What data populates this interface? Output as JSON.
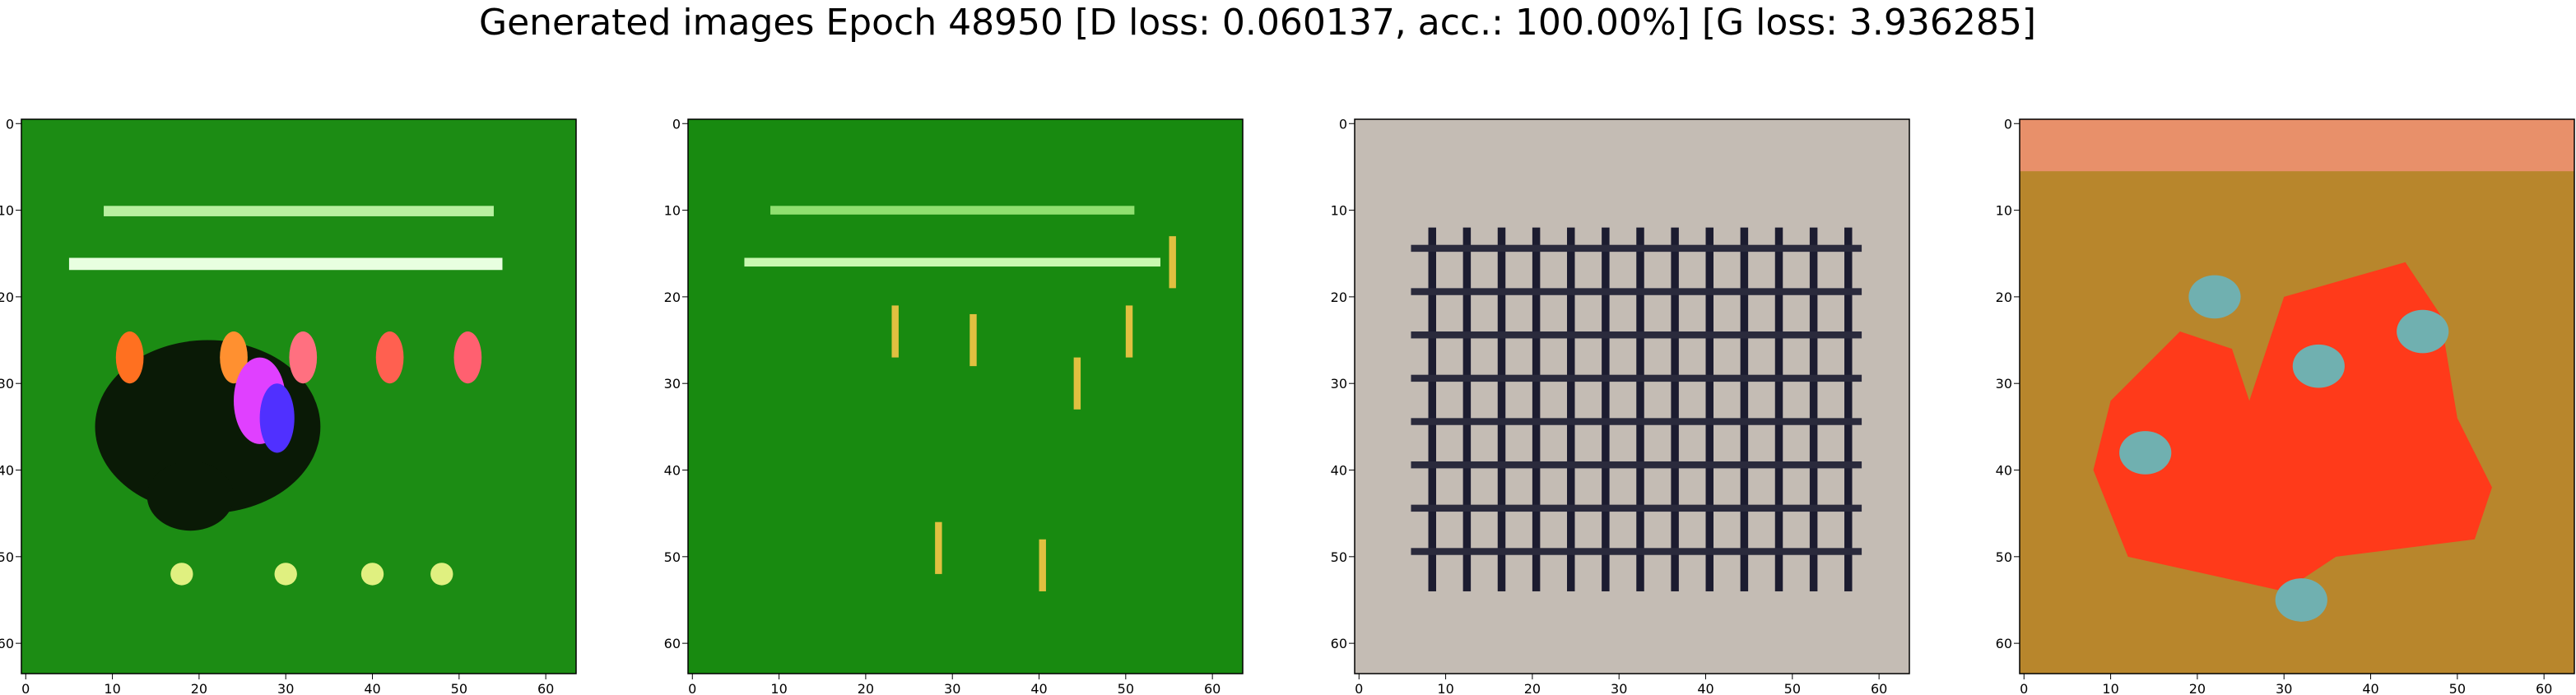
{
  "figure": {
    "title": "Generated images Epoch 48950 [D loss: 0.060137, acc.: 100.00%] [G loss: 3.936285]",
    "panels": [
      {
        "xlim": [
          -0.5,
          63.5
        ],
        "ylim": [
          63.5,
          -0.5
        ],
        "xticks": [
          0,
          10,
          20,
          30,
          40,
          50,
          60
        ],
        "yticks": [
          0,
          10,
          20,
          30,
          40,
          50,
          60
        ]
      },
      {
        "xlim": [
          -0.5,
          63.5
        ],
        "ylim": [
          63.5,
          -0.5
        ],
        "xticks": [
          0,
          10,
          20,
          30,
          40,
          50,
          60
        ],
        "yticks": [
          0,
          10,
          20,
          30,
          40,
          50,
          60
        ]
      },
      {
        "xlim": [
          -0.5,
          63.5
        ],
        "ylim": [
          63.5,
          -0.5
        ],
        "xticks": [
          0,
          10,
          20,
          30,
          40,
          50,
          60
        ],
        "yticks": [
          0,
          10,
          20,
          30,
          40,
          50,
          60
        ]
      },
      {
        "xlim": [
          -0.5,
          63.5
        ],
        "ylim": [
          63.5,
          -0.5
        ],
        "xticks": [
          0,
          10,
          20,
          30,
          40,
          50,
          60
        ],
        "yticks": [
          0,
          10,
          20,
          30,
          40,
          50,
          60
        ]
      }
    ]
  }
}
